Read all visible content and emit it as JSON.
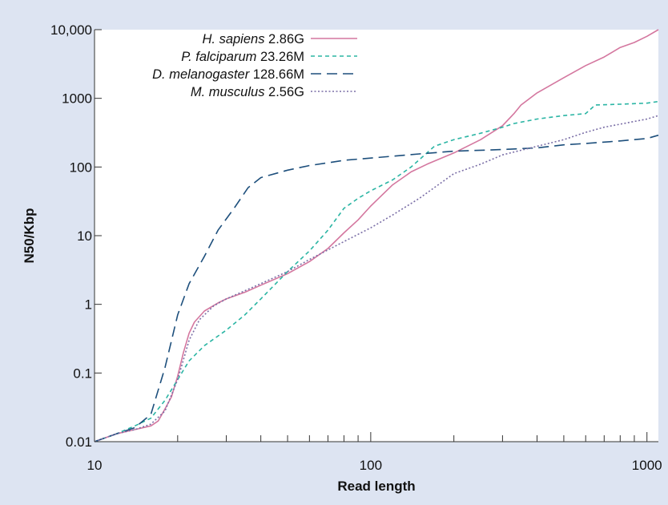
{
  "chart_data": {
    "type": "line",
    "title": "",
    "xlabel": "Read length",
    "ylabel": "N50/Kbp",
    "xscale": "log",
    "yscale": "log",
    "xlim": [
      10,
      1100
    ],
    "ylim": [
      0.01,
      10000
    ],
    "xticks": [
      {
        "value": 10,
        "label": "10"
      },
      {
        "value": 100,
        "label": "100"
      },
      {
        "value": 1000,
        "label": "1000"
      }
    ],
    "yticks": [
      {
        "value": 0.01,
        "label": "0.01"
      },
      {
        "value": 0.1,
        "label": "0.1"
      },
      {
        "value": 1,
        "label": "1"
      },
      {
        "value": 10,
        "label": "10"
      },
      {
        "value": 100,
        "label": "100"
      },
      {
        "value": 1000,
        "label": "1000"
      },
      {
        "value": 10000,
        "label": "10,000"
      }
    ],
    "grid": false,
    "legend_position": "top-left",
    "series": [
      {
        "name": "H. sapiens",
        "size": "2.86G",
        "color": "#d4779f",
        "dash": "solid",
        "points": [
          [
            10,
            0.01
          ],
          [
            12,
            0.013
          ],
          [
            14,
            0.015
          ],
          [
            16,
            0.017
          ],
          [
            17,
            0.02
          ],
          [
            18,
            0.03
          ],
          [
            19,
            0.045
          ],
          [
            20,
            0.09
          ],
          [
            21,
            0.2
          ],
          [
            22,
            0.38
          ],
          [
            23,
            0.55
          ],
          [
            25,
            0.8
          ],
          [
            28,
            1.05
          ],
          [
            30,
            1.2
          ],
          [
            35,
            1.5
          ],
          [
            40,
            1.9
          ],
          [
            50,
            2.8
          ],
          [
            60,
            4.2
          ],
          [
            70,
            6.5
          ],
          [
            80,
            11
          ],
          [
            90,
            17
          ],
          [
            100,
            27
          ],
          [
            120,
            55
          ],
          [
            140,
            85
          ],
          [
            160,
            110
          ],
          [
            200,
            160
          ],
          [
            250,
            250
          ],
          [
            300,
            400
          ],
          [
            330,
            600
          ],
          [
            350,
            800
          ],
          [
            400,
            1200
          ],
          [
            500,
            2000
          ],
          [
            600,
            3000
          ],
          [
            700,
            4000
          ],
          [
            800,
            5500
          ],
          [
            900,
            6500
          ],
          [
            1000,
            8000
          ],
          [
            1100,
            10000
          ]
        ]
      },
      {
        "name": "P. falciparum",
        "size": "23.26M",
        "color": "#2bb5a4",
        "dash": "short",
        "points": [
          [
            10,
            0.01
          ],
          [
            12,
            0.013
          ],
          [
            14,
            0.017
          ],
          [
            16,
            0.022
          ],
          [
            18,
            0.04
          ],
          [
            20,
            0.08
          ],
          [
            22,
            0.15
          ],
          [
            25,
            0.25
          ],
          [
            30,
            0.42
          ],
          [
            35,
            0.7
          ],
          [
            40,
            1.2
          ],
          [
            50,
            3
          ],
          [
            60,
            6
          ],
          [
            70,
            12
          ],
          [
            80,
            25
          ],
          [
            90,
            35
          ],
          [
            100,
            45
          ],
          [
            120,
            65
          ],
          [
            140,
            100
          ],
          [
            170,
            200
          ],
          [
            200,
            250
          ],
          [
            250,
            310
          ],
          [
            300,
            380
          ],
          [
            330,
            430
          ],
          [
            400,
            500
          ],
          [
            500,
            560
          ],
          [
            600,
            600
          ],
          [
            650,
            800
          ],
          [
            800,
            820
          ],
          [
            1000,
            850
          ],
          [
            1100,
            900
          ]
        ]
      },
      {
        "name": "D. melanogaster",
        "size": "128.66M",
        "color": "#1d4f7c",
        "dash": "long",
        "points": [
          [
            10,
            0.01
          ],
          [
            12,
            0.013
          ],
          [
            14,
            0.016
          ],
          [
            16,
            0.025
          ],
          [
            18,
            0.12
          ],
          [
            20,
            0.7
          ],
          [
            22,
            2
          ],
          [
            25,
            5
          ],
          [
            28,
            12
          ],
          [
            32,
            25
          ],
          [
            36,
            50
          ],
          [
            40,
            70
          ],
          [
            50,
            90
          ],
          [
            60,
            105
          ],
          [
            70,
            115
          ],
          [
            80,
            125
          ],
          [
            100,
            135
          ],
          [
            150,
            155
          ],
          [
            200,
            170
          ],
          [
            300,
            180
          ],
          [
            400,
            190
          ],
          [
            500,
            210
          ],
          [
            600,
            220
          ],
          [
            800,
            240
          ],
          [
            1000,
            260
          ],
          [
            1100,
            290
          ]
        ]
      },
      {
        "name": "M. musculus",
        "size": "2.56G",
        "color": "#7a6ea6",
        "dash": "dotted",
        "points": [
          [
            10,
            0.01
          ],
          [
            12,
            0.013
          ],
          [
            14,
            0.015
          ],
          [
            16,
            0.018
          ],
          [
            18,
            0.028
          ],
          [
            20,
            0.08
          ],
          [
            22,
            0.3
          ],
          [
            24,
            0.6
          ],
          [
            27,
            0.95
          ],
          [
            30,
            1.2
          ],
          [
            40,
            2
          ],
          [
            50,
            3
          ],
          [
            60,
            4.5
          ],
          [
            70,
            6.2
          ],
          [
            80,
            8.2
          ],
          [
            100,
            13
          ],
          [
            120,
            20
          ],
          [
            150,
            35
          ],
          [
            200,
            80
          ],
          [
            250,
            110
          ],
          [
            300,
            150
          ],
          [
            400,
            200
          ],
          [
            500,
            250
          ],
          [
            600,
            320
          ],
          [
            700,
            380
          ],
          [
            800,
            420
          ],
          [
            1000,
            500
          ],
          [
            1100,
            560
          ]
        ]
      }
    ]
  }
}
